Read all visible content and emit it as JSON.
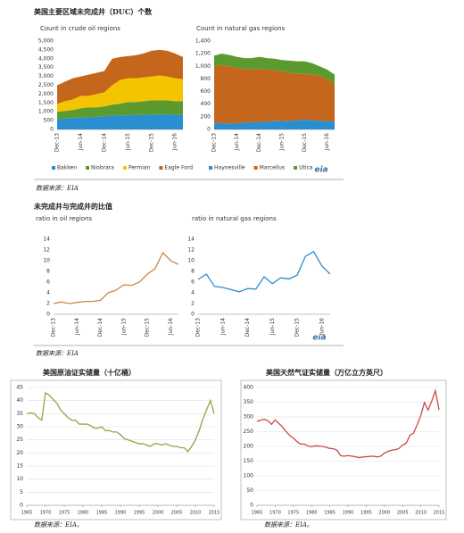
{
  "sections": [
    {
      "title": "美国主要区域未完成井（DUC）个数",
      "source": "数据来源：EIA"
    },
    {
      "title": "未完成井与完成井的比值",
      "source": "数据来源：EIA"
    }
  ],
  "chart_data": [
    {
      "type": "area",
      "title": "Count in crude oil regions",
      "stacked": true,
      "categories": [
        "Dec-13",
        null,
        null,
        "Jun-14",
        null,
        null,
        "Dec-14",
        null,
        null,
        "Jun-15",
        null,
        null,
        "Dec-15",
        null,
        null,
        "Jun-16",
        null
      ],
      "series": [
        {
          "name": "Bakken",
          "color": "#2a8fd0",
          "values": [
            600,
            620,
            650,
            680,
            700,
            720,
            750,
            780,
            800,
            800,
            820,
            830,
            840,
            850,
            850,
            830,
            820
          ]
        },
        {
          "name": "Niobrara",
          "color": "#5b9a2e",
          "values": [
            400,
            430,
            450,
            520,
            550,
            530,
            550,
            620,
            650,
            750,
            730,
            770,
            810,
            800,
            800,
            770,
            780
          ]
        },
        {
          "name": "Permian",
          "color": "#f5c400",
          "values": [
            450,
            550,
            600,
            700,
            650,
            750,
            800,
            1100,
            1350,
            1350,
            1350,
            1350,
            1350,
            1400,
            1350,
            1300,
            1250
          ]
        },
        {
          "name": "Eagle Ford",
          "color": "#c4661b",
          "values": [
            1050,
            1100,
            1200,
            1100,
            1200,
            1200,
            1200,
            1500,
            1300,
            1250,
            1300,
            1350,
            1450,
            1450,
            1450,
            1400,
            1250
          ]
        }
      ],
      "ylim": [
        0,
        5000
      ],
      "yticks": [
        0,
        500,
        {
          "value": 1000,
          "label": "1,000"
        },
        {
          "value": 1500,
          "label": "1,500"
        },
        {
          "value": 2000,
          "label": "2,000"
        },
        {
          "value": 2500,
          "label": "2,500"
        },
        {
          "value": 3000,
          "label": "3,000"
        },
        {
          "value": 3500,
          "label": "3,500"
        },
        {
          "value": 4000,
          "label": "4,000"
        },
        {
          "value": 4500,
          "label": "4,500"
        },
        {
          "value": 5000,
          "label": "5,000"
        }
      ],
      "grid": false,
      "legend": "bottom"
    },
    {
      "type": "area",
      "title": "Count in natural gas regions",
      "stacked": true,
      "logo": "eia",
      "categories": [
        "Dec-13",
        null,
        null,
        "Jun-14",
        null,
        null,
        "Dec-14",
        null,
        null,
        "Jun-15",
        null,
        null,
        "Dec-15",
        null,
        null,
        "Jun-16",
        null
      ],
      "series": [
        {
          "name": "Haynesville",
          "color": "#2a8fd0",
          "values": [
            100,
            100,
            95,
            100,
            110,
            115,
            120,
            125,
            130,
            135,
            140,
            145,
            150,
            150,
            140,
            130,
            120
          ]
        },
        {
          "name": "Marcellus",
          "color": "#c4661b",
          "values": [
            900,
            920,
            905,
            880,
            850,
            835,
            840,
            825,
            810,
            785,
            760,
            735,
            730,
            720,
            710,
            670,
            600
          ]
        },
        {
          "name": "Utica",
          "color": "#5b9a2e",
          "values": [
            170,
            180,
            180,
            170,
            170,
            180,
            190,
            180,
            180,
            180,
            190,
            200,
            200,
            180,
            150,
            150,
            150
          ]
        }
      ],
      "ylim": [
        0,
        1400
      ],
      "yticks": [
        0,
        200,
        400,
        600,
        800,
        {
          "value": 1000,
          "label": "1,000"
        },
        {
          "value": 1200,
          "label": "1,200"
        },
        {
          "value": 1400,
          "label": "1,400"
        }
      ],
      "grid": false,
      "legend": "bottom"
    },
    {
      "type": "line",
      "title": "ratio in oil regions",
      "categories": [
        "Dec-13",
        null,
        null,
        "Jun-14",
        null,
        null,
        "Dec-14",
        null,
        null,
        "Jun-15",
        null,
        null,
        "Dec-15",
        null,
        null,
        "Jun-16",
        null
      ],
      "series": [
        {
          "color": "#c8874a",
          "values": [
            2.0,
            2.3,
            2.0,
            2.2,
            2.4,
            2.4,
            2.6,
            4.0,
            4.5,
            5.5,
            5.4,
            6.0,
            7.5,
            8.5,
            11.5,
            10.0,
            9.3
          ]
        }
      ],
      "ylim": [
        0,
        14
      ],
      "yticks": [
        0,
        2,
        4,
        6,
        8,
        10,
        12,
        14
      ],
      "grid": false
    },
    {
      "type": "line",
      "title": "ratio in natural gas regions",
      "logo": "eia",
      "categories": [
        "Dec-13",
        null,
        null,
        "Jun-14",
        null,
        null,
        "Dec-14",
        null,
        null,
        "Jun-15",
        null,
        null,
        "Dec-15",
        null,
        null,
        "Jun-16",
        null
      ],
      "series": [
        {
          "color": "#2a8fd0",
          "values": [
            6.5,
            7.5,
            5.2,
            5.0,
            4.6,
            4.2,
            4.8,
            4.7,
            7.0,
            5.7,
            6.8,
            6.6,
            7.3,
            10.8,
            11.7,
            9.0,
            7.5
          ]
        }
      ],
      "ylim": [
        0,
        14
      ],
      "yticks": [
        0,
        2,
        4,
        6,
        8,
        10,
        12,
        14
      ],
      "grid": false
    },
    {
      "type": "line",
      "title": "美国原油证实储量（十亿桶）",
      "source": "数据来源：EIA。",
      "x": [
        1965,
        1966,
        1967,
        1968,
        1969,
        1970,
        1971,
        1972,
        1973,
        1974,
        1975,
        1976,
        1977,
        1978,
        1979,
        1980,
        1981,
        1982,
        1983,
        1984,
        1985,
        1986,
        1987,
        1988,
        1989,
        1990,
        1991,
        1992,
        1993,
        1994,
        1995,
        1996,
        1997,
        1998,
        1999,
        2000,
        2001,
        2002,
        2003,
        2004,
        2005,
        2006,
        2007,
        2008,
        2009,
        2010,
        2011,
        2012,
        2013,
        2014,
        2015
      ],
      "series": [
        {
          "color": "#8aa84a",
          "values": [
            35.0,
            35.3,
            35.0,
            33.5,
            32.5,
            43.0,
            42.0,
            40.5,
            39.0,
            36.5,
            35.0,
            33.5,
            32.5,
            32.5,
            31.0,
            31.0,
            31.0,
            30.5,
            29.5,
            29.5,
            30.0,
            28.5,
            28.5,
            28.0,
            28.0,
            27.0,
            25.5,
            25.0,
            24.5,
            24.0,
            23.5,
            23.5,
            23.0,
            22.5,
            23.5,
            23.5,
            23.0,
            23.5,
            23.0,
            22.5,
            22.5,
            22.0,
            22.0,
            20.5,
            22.5,
            25.0,
            28.5,
            33.0,
            36.5,
            40.0,
            35.0
          ]
        }
      ],
      "xlim": [
        1965,
        2015
      ],
      "xticks": [
        1965,
        1970,
        1975,
        1980,
        1985,
        1990,
        1995,
        2000,
        2005,
        2010,
        2015
      ],
      "ylim": [
        0,
        45
      ],
      "yticks": [
        0,
        5,
        10,
        15,
        20,
        25,
        30,
        35,
        40,
        45
      ],
      "grid": true
    },
    {
      "type": "line",
      "title": "美国天然气证实储量（万亿立方英尺）",
      "source": "数据来源：EIA。",
      "x": [
        1965,
        1966,
        1967,
        1968,
        1969,
        1970,
        1971,
        1972,
        1973,
        1974,
        1975,
        1976,
        1977,
        1978,
        1979,
        1980,
        1981,
        1982,
        1983,
        1984,
        1985,
        1986,
        1987,
        1988,
        1989,
        1990,
        1991,
        1992,
        1993,
        1994,
        1995,
        1996,
        1997,
        1998,
        1999,
        2000,
        2001,
        2002,
        2003,
        2004,
        2005,
        2006,
        2007,
        2008,
        2009,
        2010,
        2011,
        2012,
        2013,
        2014,
        2015
      ],
      "series": [
        {
          "color": "#c84a4a",
          "values": [
            285,
            289,
            292,
            287,
            275,
            290,
            278,
            266,
            250,
            237,
            228,
            216,
            208,
            208,
            201,
            199,
            202,
            201,
            200,
            197,
            193,
            192,
            187,
            168,
            167,
            169,
            167,
            165,
            162,
            164,
            165,
            166,
            167,
            164,
            167,
            177,
            183,
            187,
            189,
            193,
            204,
            211,
            238,
            245,
            273,
            305,
            349,
            323,
            354,
            389,
            324
          ]
        }
      ],
      "xlim": [
        1965,
        2015
      ],
      "xticks": [
        1965,
        1970,
        1975,
        1980,
        1985,
        1990,
        1995,
        2000,
        2005,
        2010,
        2015
      ],
      "ylim": [
        0,
        400
      ],
      "yticks": [
        0,
        50,
        100,
        150,
        200,
        250,
        300,
        350,
        400
      ],
      "grid": true
    }
  ]
}
